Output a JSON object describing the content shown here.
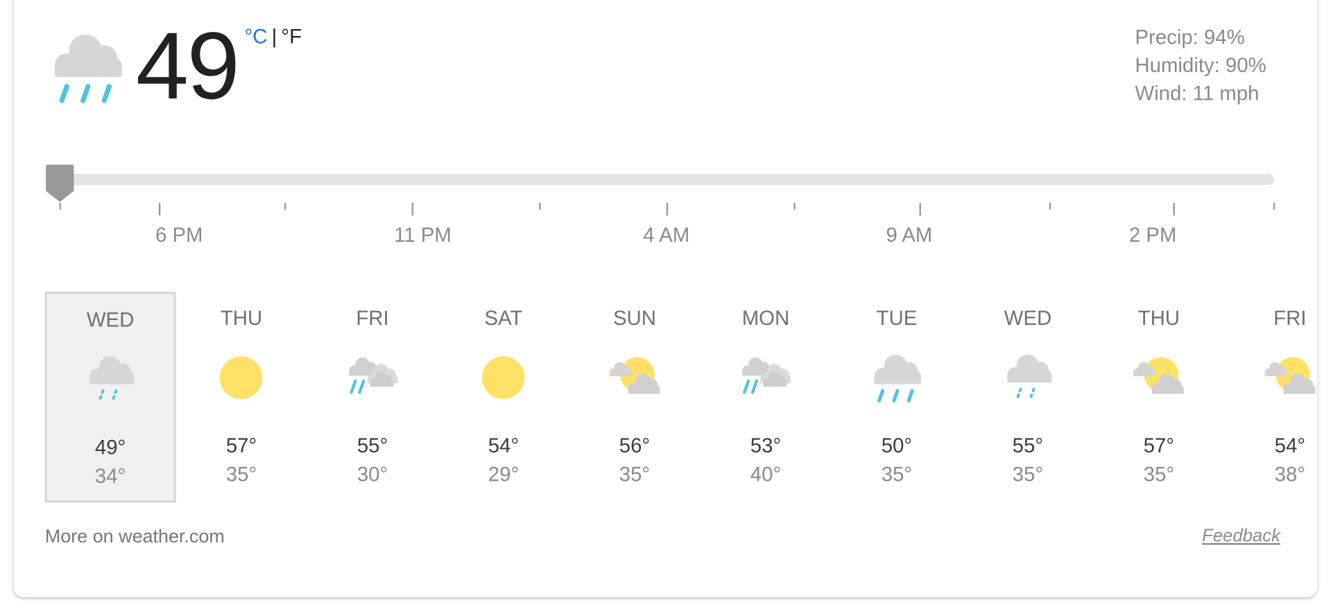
{
  "current": {
    "temperature": "49",
    "condition_icon": "rain-heavy",
    "unit_celsius": "°C",
    "unit_separator": "|",
    "unit_fahrenheit": "°F",
    "active_unit": "°C",
    "precip": "Precip: 94%",
    "humidity": "Humidity: 90%",
    "wind": "Wind: 11 mph"
  },
  "timeline": {
    "position": 0,
    "labels": [
      "6 PM",
      "11 PM",
      "4 AM",
      "9 AM",
      "2 PM"
    ]
  },
  "days": [
    {
      "name": "WED",
      "icon": "rain-light",
      "high": "49°",
      "low": "34°",
      "selected": true
    },
    {
      "name": "THU",
      "icon": "sunny",
      "high": "57°",
      "low": "35°"
    },
    {
      "name": "FRI",
      "icon": "scattered-showers",
      "high": "55°",
      "low": "30°"
    },
    {
      "name": "SAT",
      "icon": "sunny",
      "high": "54°",
      "low": "29°"
    },
    {
      "name": "SUN",
      "icon": "partly-cloudy",
      "high": "56°",
      "low": "35°"
    },
    {
      "name": "MON",
      "icon": "scattered-showers",
      "high": "53°",
      "low": "40°"
    },
    {
      "name": "TUE",
      "icon": "rain-heavy",
      "high": "50°",
      "low": "35°"
    },
    {
      "name": "WED",
      "icon": "rain-light",
      "high": "55°",
      "low": "35°"
    },
    {
      "name": "THU",
      "icon": "partly-cloudy",
      "high": "57°",
      "low": "35°"
    },
    {
      "name": "FRI",
      "icon": "partly-cloudy",
      "high": "54°",
      "low": "38°"
    }
  ],
  "footer": {
    "more_link": "More on weather.com",
    "feedback": "Feedback"
  },
  "colors": {
    "accent": "#1a73e8",
    "cloud": "#d6d6d6",
    "sun": "#ffe168",
    "rain": "#4fc3e0"
  }
}
